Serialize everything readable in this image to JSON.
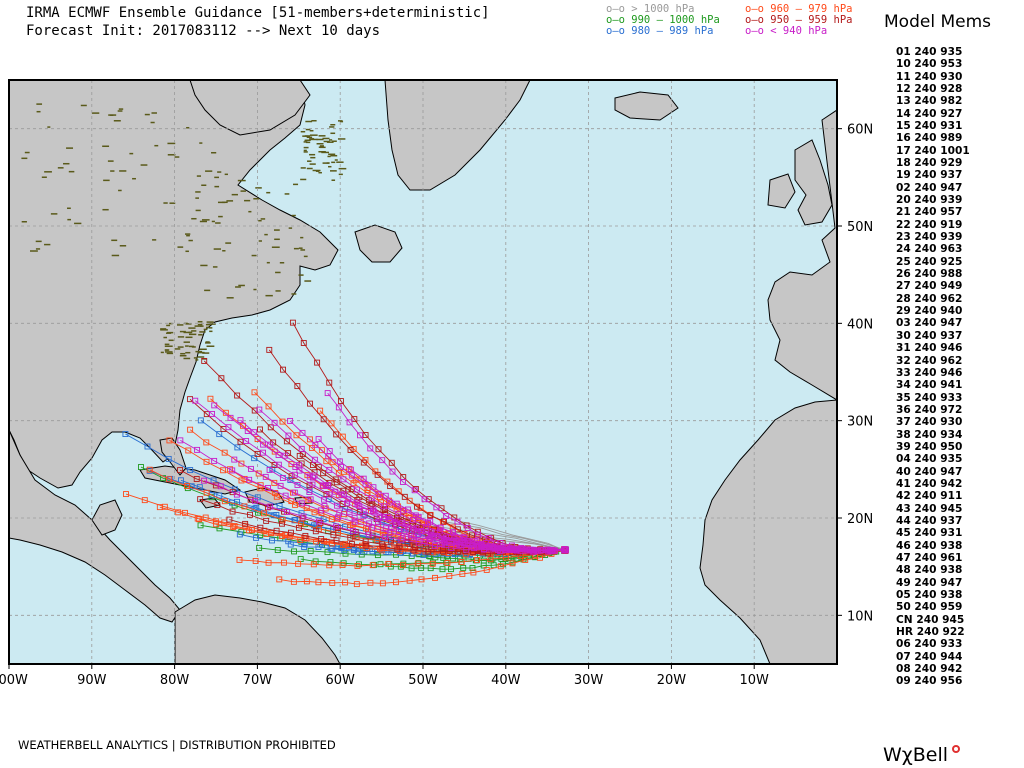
{
  "header": {
    "line1": "IRMA ECMWF Ensemble Guidance [51-members+deterministic]",
    "line2": "Forecast Init: 2017083112 --> Next 10 days"
  },
  "legend": [
    {
      "label": "o–o > 1000 hPa",
      "color": "#9a9a9a"
    },
    {
      "label": "o–o 990 – 1000 hPa",
      "color": "#1f9a1f"
    },
    {
      "label": "o–o 980 – 989 hPa",
      "color": "#2a6fd1"
    },
    {
      "label": "o–o 960 – 979 hPa",
      "color": "#ff4a1a"
    },
    {
      "label": "o–o 950 – 959 hPa",
      "color": "#b31a1a"
    },
    {
      "label": "o–o < 940 hPa",
      "color": "#c81ec8"
    }
  ],
  "colors": {
    "ocean": "#cceaf2",
    "land": "#c6c6c6",
    "coast": "#000000",
    "grid": "#9a9a9a",
    "lake_dots": "#5a5a1a",
    "track_gray": "#9a9a9a",
    "track_green": "#1f9a1f",
    "track_blue": "#2a6fd1",
    "track_orange": "#ff4a1a",
    "track_red": "#b31a1a",
    "track_magenta": "#c81ec8"
  },
  "map": {
    "lon_labels": [
      "100W",
      "90W",
      "80W",
      "70W",
      "60W",
      "50W",
      "40W",
      "30W",
      "20W",
      "10W"
    ],
    "lat_labels": [
      "10N",
      "20N",
      "30N",
      "40N",
      "50N",
      "60N"
    ],
    "lon_range": [
      -100,
      0
    ],
    "lat_range": [
      5,
      65
    ],
    "storm": "IRMA",
    "track_sets": [
      {
        "color_key": "track_gray",
        "count": 5
      },
      {
        "color_key": "track_green",
        "count": 6
      },
      {
        "color_key": "track_blue",
        "count": 7
      },
      {
        "color_key": "track_orange",
        "count": 14
      },
      {
        "color_key": "track_red",
        "count": 9
      },
      {
        "color_key": "track_magenta",
        "count": 12
      }
    ]
  },
  "members_panel": {
    "title": "Model Mems",
    "rows": [
      "01 240 935",
      "10 240 953",
      "11 240 930",
      "12 240 928",
      "13 240 982",
      "14 240 927",
      "15 240 931",
      "16 240 989",
      "17 240 1001",
      "18 240 929",
      "19 240 937",
      "02 240 947",
      "20 240 939",
      "21 240 957",
      "22 240 919",
      "23 240 939",
      "24 240 963",
      "25 240 925",
      "26 240 988",
      "27 240 949",
      "28 240 962",
      "29 240 940",
      "03 240 947",
      "30 240 937",
      "31 240 946",
      "32 240 962",
      "33 240 946",
      "34 240 941",
      "35 240 933",
      "36 240 972",
      "37 240 930",
      "38 240 934",
      "39 240 950",
      "04 240 935",
      "40 240 947",
      "41 240 942",
      "42 240 911",
      "43 240 945",
      "44 240 937",
      "45 240 931",
      "46 240 938",
      "47 240 961",
      "48 240 938",
      "49 240 947",
      "05 240 938",
      "50 240 959",
      "CN 240 945",
      "HR 240 922",
      "06 240 933",
      "07 240 944",
      "08 240 942",
      "09 240 956"
    ]
  },
  "footer": {
    "text": "WEATHERBELL ANALYTICS | DISTRIBUTION PROHIBITED",
    "brand": "WχBell"
  }
}
